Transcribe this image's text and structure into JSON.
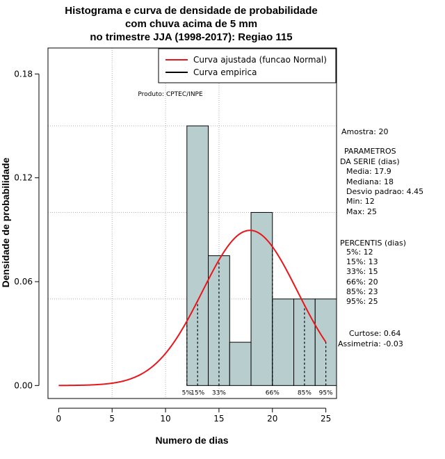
{
  "chart_data": {
    "type": "bar",
    "title_lines": [
      "Histograma e curva de densidade de probabilidade",
      "com chuva acima de 5 mm",
      "no trimestre JJA (1998-2017): Regiao 115"
    ],
    "xlabel": "Numero de dias",
    "ylabel": "Densidade de probabilidade",
    "xlim": [
      -1,
      26
    ],
    "ylim": [
      -0.0075,
      0.195
    ],
    "xticks": [
      0,
      5,
      10,
      15,
      20,
      25
    ],
    "yticks": [
      0.0,
      0.06,
      0.12,
      0.18
    ],
    "ytick_labels": [
      "0.00",
      "0.06",
      "0.12",
      "0.18"
    ],
    "hgrid": [
      0.05,
      0.1,
      0.15
    ],
    "vgrid": [
      5,
      10,
      15
    ],
    "bars": [
      {
        "x0": 12,
        "x1": 14,
        "density": 0.15
      },
      {
        "x0": 14,
        "x1": 16,
        "density": 0.075
      },
      {
        "x0": 16,
        "x1": 18,
        "density": 0.025
      },
      {
        "x0": 18,
        "x1": 20,
        "density": 0.1
      },
      {
        "x0": 20,
        "x1": 22,
        "density": 0.05
      },
      {
        "x0": 22,
        "x1": 24,
        "density": 0.05
      },
      {
        "x0": 24,
        "x1": 26,
        "density": 0.05
      }
    ],
    "normal_fit": {
      "mean": 17.9,
      "sd": 4.45,
      "x_from": 0,
      "x_to": 25
    },
    "percentile_lines": [
      {
        "x": 12,
        "label": "5%"
      },
      {
        "x": 13,
        "label": "15%"
      },
      {
        "x": 15,
        "label": "33%"
      },
      {
        "x": 20,
        "label": "66%"
      },
      {
        "x": 23,
        "label": "85%"
      },
      {
        "x": 25,
        "label": "95%"
      }
    ],
    "legend": {
      "placement": "top-right",
      "entries": [
        {
          "label": "Curva ajustada (funcao Normal)",
          "color": "#e8161b"
        },
        {
          "label": "Curva empirica",
          "color": "#000000"
        }
      ]
    },
    "product_label": "Produto: CPTEC/INPE",
    "stats_text": [
      "Amostra: 20",
      "PARAMETROS",
      "DA SERIE (dias)",
      "Media: 17.9",
      "Mediana: 18",
      "Desvio padrao: 4.45",
      "Min: 12",
      "Max: 25",
      "PERCENTIS (dias)",
      "5%: 12",
      "15%: 13",
      "33%: 15",
      "66%: 20",
      "85%: 23",
      "95%: 25",
      "Curtose: 0.64",
      "Assimetria: -0.03"
    ],
    "colors": {
      "bar_fill": "#b8cece",
      "bar_stroke": "#000000",
      "curve": "#e8161b",
      "grid": "#b0b0b0"
    }
  }
}
